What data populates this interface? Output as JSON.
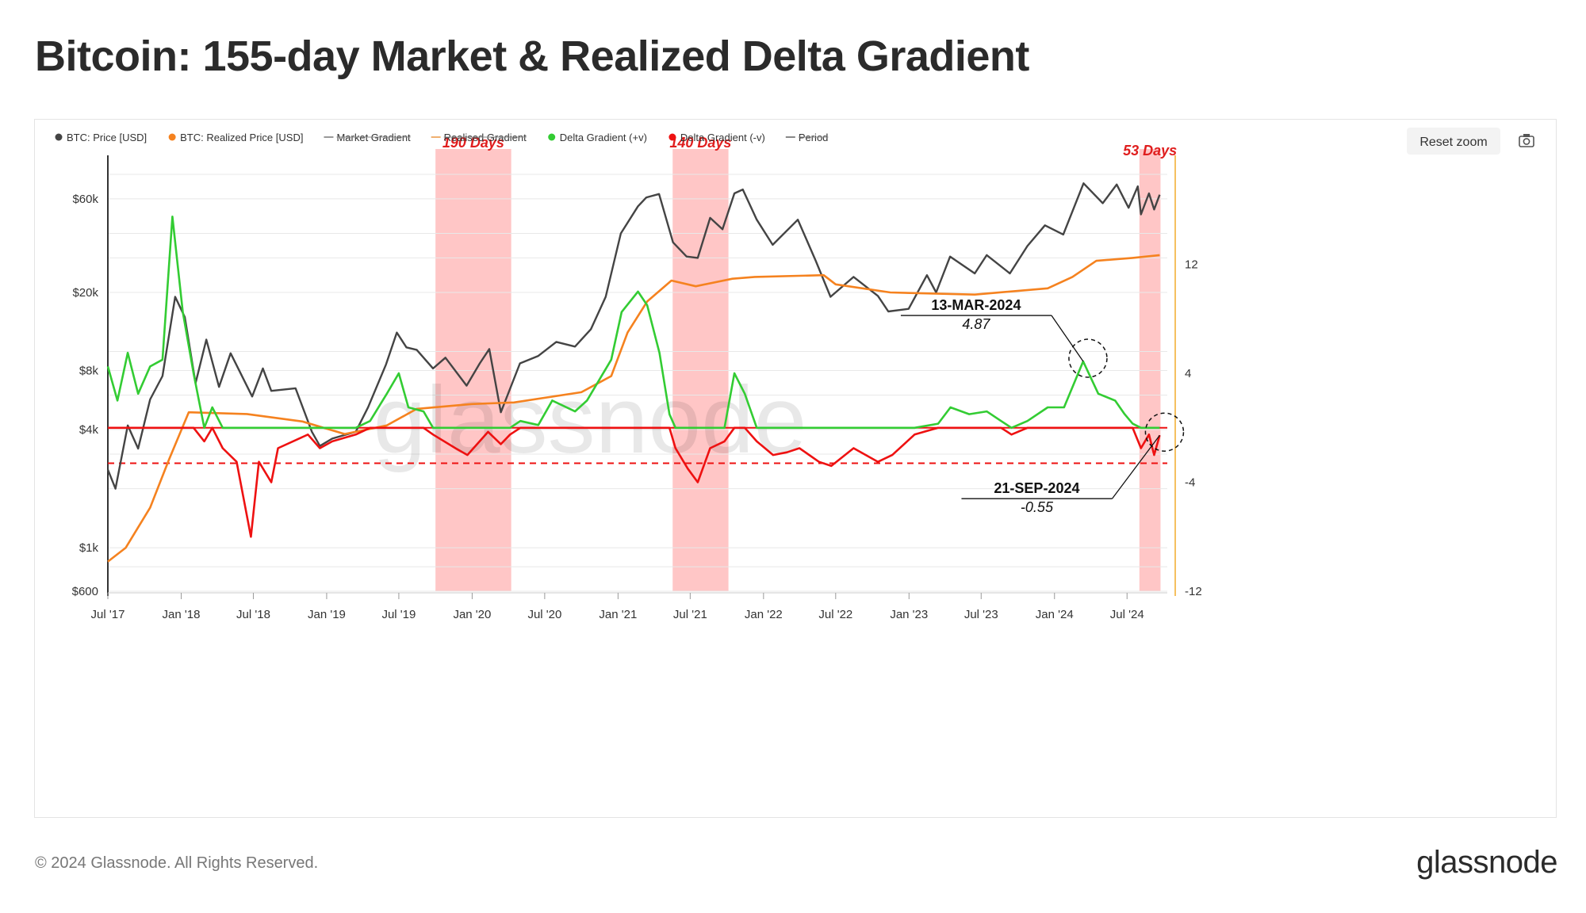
{
  "page": {
    "title": "Bitcoin: 155-day Market & Realized Delta Gradient",
    "copyright": "© 2024 Glassnode. All Rights Reserved.",
    "brand": "glassnode",
    "watermark": "glassnode"
  },
  "toolbar": {
    "reset_zoom_label": "Reset zoom",
    "camera_icon": "camera-icon"
  },
  "chart_data": {
    "type": "line",
    "title": "Bitcoin: 155-day Market & Realized Delta Gradient",
    "legend_placement": "top-left",
    "grid": true,
    "y_scale_left": "log",
    "x_range": [
      "2017-07-01",
      "2024-10-10"
    ],
    "ylim_left": [
      600,
      100000
    ],
    "ylim_right": [
      -12,
      20
    ],
    "x_ticks": [
      "Jul '17",
      "Jan '18",
      "Jul '18",
      "Jan '19",
      "Jul '19",
      "Jan '20",
      "Jul '20",
      "Jan '21",
      "Jul '21",
      "Jan '22",
      "Jul '22",
      "Jan '23",
      "Jul '23",
      "Jan '24",
      "Jul '24"
    ],
    "y_ticks_left": [
      {
        "value": 600,
        "label": "$600"
      },
      {
        "value": 1000,
        "label": "$1k"
      },
      {
        "value": 4000,
        "label": "$4k"
      },
      {
        "value": 8000,
        "label": "$8k"
      },
      {
        "value": 20000,
        "label": "$20k"
      },
      {
        "value": 60000,
        "label": "$60k"
      }
    ],
    "y_ticks_right": [
      {
        "value": -12,
        "label": "-12"
      },
      {
        "value": -4,
        "label": "-4"
      },
      {
        "value": 4,
        "label": "4"
      },
      {
        "value": 12,
        "label": "12"
      }
    ],
    "legend": [
      {
        "name": "BTC: Price [USD]",
        "color": "#444444",
        "disabled": false
      },
      {
        "name": "BTC: Realized Price [USD]",
        "color": "#f5821f",
        "disabled": false
      },
      {
        "name": "Market Gradient",
        "color": "#999999",
        "disabled": true
      },
      {
        "name": "Realised Gradient",
        "color": "#f0b070",
        "disabled": true
      },
      {
        "name": "Delta Gradient (+v)",
        "color": "#33cc33",
        "disabled": false
      },
      {
        "name": "Delta Gradient (-v)",
        "color": "#ee1111",
        "disabled": false
      },
      {
        "name": "Period",
        "color": "#888888",
        "disabled": true
      }
    ],
    "series": [
      {
        "name": "BTC: Price [USD]",
        "axis": "left",
        "color": "#444444",
        "points": [
          [
            "2017-07-01",
            2500
          ],
          [
            "2017-07-20",
            2000
          ],
          [
            "2017-08-20",
            4200
          ],
          [
            "2017-09-15",
            3200
          ],
          [
            "2017-10-15",
            5700
          ],
          [
            "2017-11-15",
            7500
          ],
          [
            "2017-12-17",
            19000
          ],
          [
            "2018-01-10",
            15000
          ],
          [
            "2018-02-06",
            6900
          ],
          [
            "2018-03-05",
            11500
          ],
          [
            "2018-04-06",
            6600
          ],
          [
            "2018-05-05",
            9800
          ],
          [
            "2018-06-28",
            5900
          ],
          [
            "2018-07-25",
            8200
          ],
          [
            "2018-08-15",
            6300
          ],
          [
            "2018-10-15",
            6500
          ],
          [
            "2018-11-25",
            3900
          ],
          [
            "2018-12-15",
            3300
          ],
          [
            "2019-01-15",
            3600
          ],
          [
            "2019-03-15",
            3900
          ],
          [
            "2019-04-15",
            5200
          ],
          [
            "2019-05-30",
            8600
          ],
          [
            "2019-06-26",
            12500
          ],
          [
            "2019-07-20",
            10500
          ],
          [
            "2019-08-15",
            10200
          ],
          [
            "2019-09-25",
            8200
          ],
          [
            "2019-10-26",
            9300
          ],
          [
            "2019-12-18",
            6700
          ],
          [
            "2020-01-20",
            8700
          ],
          [
            "2020-02-13",
            10300
          ],
          [
            "2020-03-13",
            4900
          ],
          [
            "2020-04-30",
            8700
          ],
          [
            "2020-06-15",
            9500
          ],
          [
            "2020-07-30",
            11200
          ],
          [
            "2020-09-15",
            10600
          ],
          [
            "2020-10-25",
            13000
          ],
          [
            "2020-12-01",
            19000
          ],
          [
            "2021-01-08",
            40000
          ],
          [
            "2021-02-20",
            55000
          ],
          [
            "2021-03-13",
            61000
          ],
          [
            "2021-04-14",
            63500
          ],
          [
            "2021-05-19",
            36000
          ],
          [
            "2021-06-22",
            30500
          ],
          [
            "2021-07-20",
            30000
          ],
          [
            "2021-08-20",
            48000
          ],
          [
            "2021-09-20",
            42000
          ],
          [
            "2021-10-20",
            64000
          ],
          [
            "2021-11-10",
            67000
          ],
          [
            "2021-12-15",
            47000
          ],
          [
            "2022-01-24",
            35000
          ],
          [
            "2022-03-28",
            47000
          ],
          [
            "2022-05-12",
            29000
          ],
          [
            "2022-06-18",
            19000
          ],
          [
            "2022-08-15",
            24000
          ],
          [
            "2022-10-15",
            19200
          ],
          [
            "2022-11-10",
            16000
          ],
          [
            "2022-12-31",
            16500
          ],
          [
            "2023-02-15",
            24500
          ],
          [
            "2023-03-10",
            20000
          ],
          [
            "2023-04-14",
            30500
          ],
          [
            "2023-06-15",
            25000
          ],
          [
            "2023-07-15",
            31000
          ],
          [
            "2023-09-11",
            25000
          ],
          [
            "2023-10-25",
            34500
          ],
          [
            "2023-12-08",
            44000
          ],
          [
            "2024-01-23",
            39500
          ],
          [
            "2024-03-14",
            72000
          ],
          [
            "2024-05-01",
            57000
          ],
          [
            "2024-06-05",
            71000
          ],
          [
            "2024-07-05",
            54000
          ],
          [
            "2024-07-28",
            69500
          ],
          [
            "2024-08-05",
            50000
          ],
          [
            "2024-08-25",
            64000
          ],
          [
            "2024-09-07",
            53000
          ],
          [
            "2024-09-21",
            63000
          ]
        ]
      },
      {
        "name": "BTC: Realized Price [USD]",
        "axis": "left",
        "color": "#f5821f",
        "points": [
          [
            "2017-07-01",
            850
          ],
          [
            "2017-08-15",
            1000
          ],
          [
            "2017-10-15",
            1600
          ],
          [
            "2017-12-01",
            2800
          ],
          [
            "2018-01-20",
            4900
          ],
          [
            "2018-06-15",
            4800
          ],
          [
            "2018-11-01",
            4400
          ],
          [
            "2019-02-15",
            3800
          ],
          [
            "2019-06-01",
            4200
          ],
          [
            "2019-08-15",
            5100
          ],
          [
            "2019-12-31",
            5400
          ],
          [
            "2020-04-15",
            5500
          ],
          [
            "2020-10-01",
            6200
          ],
          [
            "2020-12-15",
            7500
          ],
          [
            "2021-01-25",
            12500
          ],
          [
            "2021-03-15",
            18000
          ],
          [
            "2021-05-15",
            23000
          ],
          [
            "2021-07-15",
            21500
          ],
          [
            "2021-10-15",
            23500
          ],
          [
            "2021-12-10",
            24000
          ],
          [
            "2022-06-01",
            24500
          ],
          [
            "2022-07-01",
            22000
          ],
          [
            "2022-11-15",
            20000
          ],
          [
            "2023-06-15",
            19500
          ],
          [
            "2023-12-15",
            21000
          ],
          [
            "2024-02-15",
            24000
          ],
          [
            "2024-04-15",
            29000
          ],
          [
            "2024-07-15,",
            30000
          ],
          [
            "2024-09-21",
            31000
          ]
        ]
      },
      {
        "name": "Delta Gradient",
        "axis": "right",
        "color_positive": "#33cc33",
        "color_negative": "#ee1111",
        "threshold": 0,
        "points": [
          [
            "2017-07-01",
            4.5
          ],
          [
            "2017-07-25",
            2.0
          ],
          [
            "2017-08-20",
            5.5
          ],
          [
            "2017-09-15",
            2.5
          ],
          [
            "2017-10-15",
            4.5
          ],
          [
            "2017-11-15",
            5.0
          ],
          [
            "2017-12-10",
            15.5
          ],
          [
            "2018-01-05",
            8.5
          ],
          [
            "2018-02-01",
            4.0
          ],
          [
            "2018-02-28",
            -1.0
          ],
          [
            "2018-03-20",
            1.5
          ],
          [
            "2018-04-15",
            -1.5
          ],
          [
            "2018-05-20",
            -2.5
          ],
          [
            "2018-06-25",
            -8.0
          ],
          [
            "2018-07-15",
            -2.5
          ],
          [
            "2018-08-15",
            -4.0
          ],
          [
            "2018-09-01",
            -1.5
          ],
          [
            "2018-11-15",
            -0.5
          ],
          [
            "2018-12-15",
            -1.5
          ],
          [
            "2019-01-15",
            -1.0
          ],
          [
            "2019-03-15",
            -0.5
          ],
          [
            "2019-04-20",
            0.5
          ],
          [
            "2019-06-01",
            2.5
          ],
          [
            "2019-07-01",
            4.0
          ],
          [
            "2019-07-25",
            1.5
          ],
          [
            "2019-09-01",
            1.2
          ],
          [
            "2019-09-25",
            -0.5
          ],
          [
            "2019-11-20",
            -1.5
          ],
          [
            "2019-12-20",
            -2.0
          ],
          [
            "2020-02-10",
            -0.3
          ],
          [
            "2020-03-13",
            -1.2
          ],
          [
            "2020-04-05",
            -0.5
          ],
          [
            "2020-05-01",
            0.5
          ],
          [
            "2020-06-15",
            0.2
          ],
          [
            "2020-07-20",
            2.0
          ],
          [
            "2020-09-15",
            1.2
          ],
          [
            "2020-10-15",
            2.0
          ],
          [
            "2020-12-15",
            5.0
          ],
          [
            "2021-01-10",
            8.5
          ],
          [
            "2021-02-20",
            10.0
          ],
          [
            "2021-03-15",
            9.0
          ],
          [
            "2021-04-15",
            5.5
          ],
          [
            "2021-05-10",
            1.0
          ],
          [
            "2021-05-25",
            -1.5
          ],
          [
            "2021-06-25",
            -3.0
          ],
          [
            "2021-07-20",
            -4.0
          ],
          [
            "2021-08-20",
            -1.5
          ],
          [
            "2021-09-25",
            -1.0
          ],
          [
            "2021-10-20",
            4.0
          ],
          [
            "2021-11-15",
            2.5
          ],
          [
            "2021-12-15",
            -1.0
          ],
          [
            "2022-01-25",
            -2.0
          ],
          [
            "2022-03-01",
            -1.8
          ],
          [
            "2022-04-01",
            -1.5
          ],
          [
            "2022-05-20",
            -2.5
          ],
          [
            "2022-06-20",
            -2.8
          ],
          [
            "2022-08-15",
            -1.5
          ],
          [
            "2022-10-15",
            -2.5
          ],
          [
            "2022-11-20",
            -2.0
          ],
          [
            "2023-01-15",
            -0.5
          ],
          [
            "2023-03-15",
            0.3
          ],
          [
            "2023-04-15",
            1.5
          ],
          [
            "2023-06-01",
            1.0
          ],
          [
            "2023-07-15",
            1.2
          ],
          [
            "2023-08-20",
            0.5
          ],
          [
            "2023-09-15",
            -0.5
          ],
          [
            "2023-10-25",
            0.5
          ],
          [
            "2023-12-15",
            1.5
          ],
          [
            "2024-01-25",
            1.5
          ],
          [
            "2024-03-13",
            4.87
          ],
          [
            "2024-04-20",
            2.5
          ],
          [
            "2024-06-01",
            2.0
          ],
          [
            "2024-06-25",
            1.0
          ],
          [
            "2024-07-15",
            0.3
          ],
          [
            "2024-08-05",
            -1.5
          ],
          [
            "2024-08-25",
            -0.5
          ],
          [
            "2024-09-07",
            -2.0
          ],
          [
            "2024-09-21",
            -0.55
          ]
        ]
      }
    ],
    "reference_lines": [
      {
        "axis": "right",
        "value": 0,
        "style": "solid",
        "color": "#ee1111"
      },
      {
        "axis": "right",
        "value": -2.6,
        "style": "dashed",
        "color": "#ee1111"
      }
    ],
    "periods": [
      {
        "start": "2019-10-01",
        "end": "2020-04-08",
        "label": "190 Days"
      },
      {
        "start": "2021-05-18",
        "end": "2021-10-05",
        "label": "140 Days"
      },
      {
        "start": "2024-08-01",
        "end": "2024-09-23",
        "label": "53 Days"
      }
    ],
    "annotations": [
      {
        "date_label": "13-MAR-2024",
        "value_label": "4.87",
        "x": "2024-03-13",
        "y": 4.87
      },
      {
        "date_label": "21-SEP-2024",
        "value_label": "-0.55",
        "x": "2024-09-21",
        "y": -0.55
      }
    ]
  }
}
